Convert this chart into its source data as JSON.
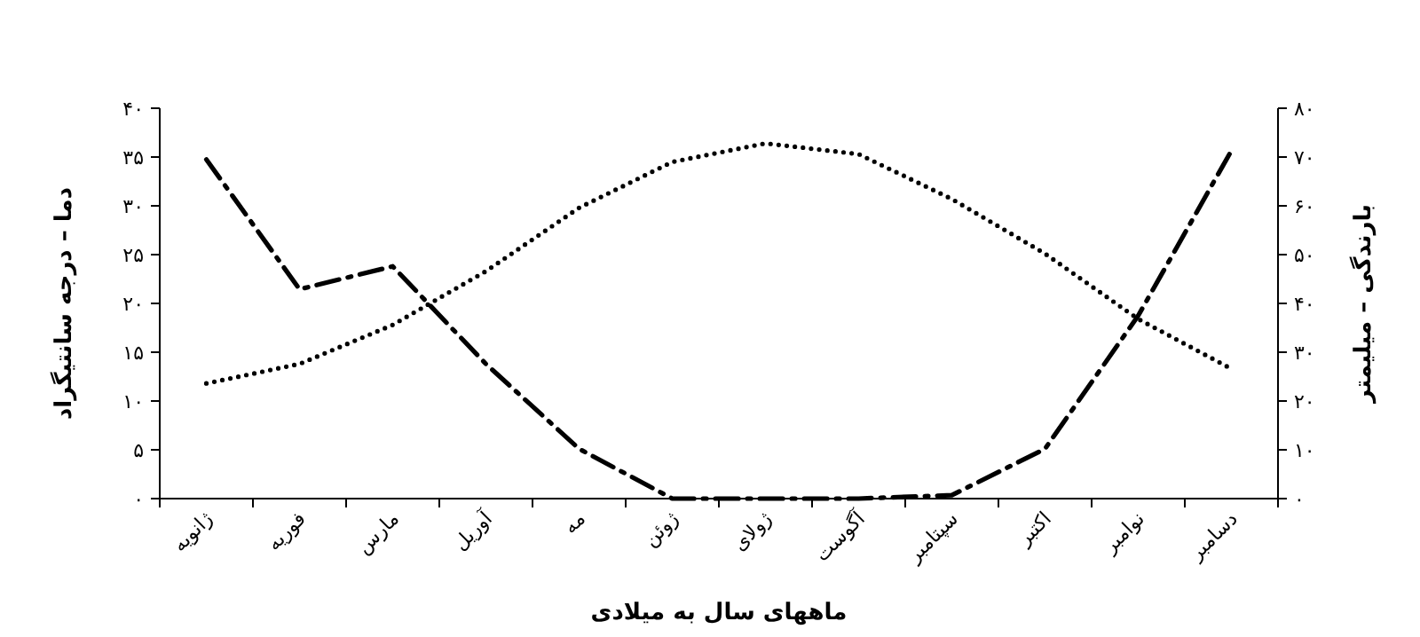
{
  "chart_data": {
    "type": "line",
    "xlabel": "ماههای سال به میلادی",
    "ylabel": "دما – درجه سانتیگراد",
    "y2label": "بارندگی – میلیمتر",
    "categories": [
      "ژانویه",
      "فوریه",
      "مارس",
      "آوریل",
      "مه",
      "ژوئن",
      "ژولای",
      "آگوست",
      "سپتامبر",
      "اکتبر",
      "نوامبر",
      "دسامبر"
    ],
    "ylim": [
      0,
      40
    ],
    "yticks": [
      {
        "value": 0,
        "label": "۰"
      },
      {
        "value": 5,
        "label": "۵"
      },
      {
        "value": 10,
        "label": "۱۰"
      },
      {
        "value": 15,
        "label": "۱۵"
      },
      {
        "value": 20,
        "label": "۲۰"
      },
      {
        "value": 25,
        "label": "۲۵"
      },
      {
        "value": 30,
        "label": "۳۰"
      },
      {
        "value": 35,
        "label": "۳۵"
      },
      {
        "value": 40,
        "label": "۴۰"
      }
    ],
    "y2lim": [
      0,
      80
    ],
    "y2ticks": [
      {
        "value": 0,
        "label": "۰"
      },
      {
        "value": 10,
        "label": "۱۰"
      },
      {
        "value": 20,
        "label": "۲۰"
      },
      {
        "value": 30,
        "label": "۳۰"
      },
      {
        "value": 40,
        "label": "۴۰"
      },
      {
        "value": 50,
        "label": "۵۰"
      },
      {
        "value": 60,
        "label": "۶۰"
      },
      {
        "value": 70,
        "label": "۷۰"
      },
      {
        "value": 80,
        "label": "۸۰"
      }
    ],
    "series": [
      {
        "color": "#000000",
        "line_style": "dotted",
        "values": [
          11.8,
          13.8,
          17.8,
          23.3,
          29.8,
          34.5,
          36.4,
          35.3,
          30.7,
          25.1,
          18.4,
          13.3
        ]
      },
      {
        "color": "#000000",
        "line_style": "dashed",
        "axis": "y2",
        "values": [
          69.5,
          42.9,
          47.6,
          27.6,
          10.2,
          0,
          0,
          0,
          0.7,
          10.2,
          37.5,
          71.3
        ]
      }
    ]
  }
}
